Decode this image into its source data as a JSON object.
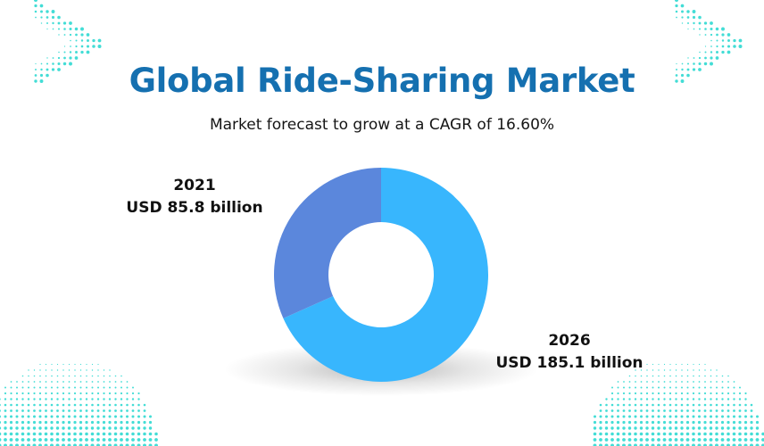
{
  "header": {
    "title": "Global Ride-Sharing Market",
    "subtitle": "Market forecast to grow at a CAGR of 16.60%"
  },
  "chart_data": {
    "type": "pie",
    "variant": "donut",
    "title": "Global Ride-Sharing Market",
    "subtitle": "Market forecast to grow at a CAGR of 16.60%",
    "series": [
      {
        "name": "2021",
        "value": 85.8,
        "label": "USD 85.8 billion",
        "color": "#5b87dc"
      },
      {
        "name": "2026",
        "value": 185.1,
        "label": "USD 185.1 billion",
        "color": "#38b6fd"
      }
    ],
    "legend": "none"
  },
  "colors": {
    "title": "#1570b0",
    "accent_dots": "#43ddd6",
    "donut_2021": "#5b87dc",
    "donut_2026": "#38b6fd"
  },
  "decorations": [
    "dot-chevron-top-left",
    "dot-chevron-top-right",
    "dot-arc-bottom-left",
    "dot-arc-bottom-right"
  ]
}
